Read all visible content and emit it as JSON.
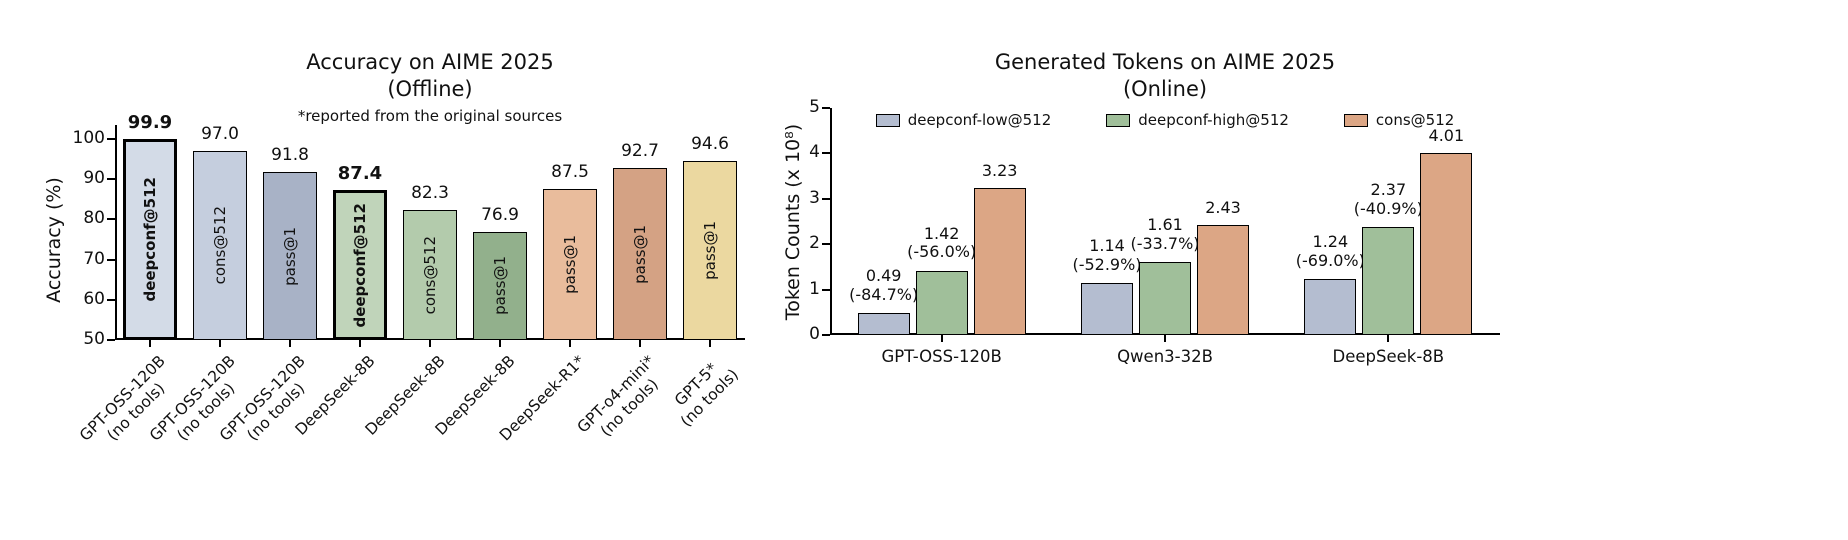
{
  "figure": {
    "background": "#ffffff"
  },
  "chart_data": [
    {
      "type": "bar",
      "title": "Accuracy on AIME 2025",
      "subtitle": "(Offline)",
      "note": "*reported from the original sources",
      "ylabel": "Accuracy (%)",
      "xlabel": "",
      "ylim": [
        50,
        100
      ],
      "yticks": [
        50,
        60,
        70,
        80,
        90,
        100
      ],
      "grid": false,
      "bars": [
        {
          "category": "GPT-OSS-120B\n(no tools)",
          "method": "deepconf@512",
          "value": 99.9,
          "label": "99.9",
          "color": "#d3dbe7",
          "highlight": true
        },
        {
          "category": "GPT-OSS-120B\n(no tools)",
          "method": "cons@512",
          "value": 97.0,
          "label": "97.0",
          "color": "#c5cede",
          "highlight": false
        },
        {
          "category": "GPT-OSS-120B\n(no tools)",
          "method": "pass@1",
          "value": 91.8,
          "label": "91.8",
          "color": "#a8b2c6",
          "highlight": false
        },
        {
          "category": "DeepSeek-8B",
          "method": "deepconf@512",
          "value": 87.4,
          "label": "87.4",
          "color": "#c0d4ba",
          "highlight": true
        },
        {
          "category": "DeepSeek-8B",
          "method": "cons@512",
          "value": 82.3,
          "label": "82.3",
          "color": "#b3cbac",
          "highlight": false
        },
        {
          "category": "DeepSeek-8B",
          "method": "pass@1",
          "value": 76.9,
          "label": "76.9",
          "color": "#92b08c",
          "highlight": false
        },
        {
          "category": "DeepSeek-R1*",
          "method": "pass@1",
          "value": 87.5,
          "label": "87.5",
          "color": "#e9bc9c",
          "highlight": false
        },
        {
          "category": "GPT-o4-mini*\n(no tools)",
          "method": "pass@1",
          "value": 92.7,
          "label": "92.7",
          "color": "#d4a284",
          "highlight": false
        },
        {
          "category": "GPT-5*\n(no tools)",
          "method": "pass@1",
          "value": 94.6,
          "label": "94.6",
          "color": "#ebd8a0",
          "highlight": false
        }
      ]
    },
    {
      "type": "bar",
      "title": "Generated Tokens on AIME 2025",
      "subtitle": "(Online)",
      "ylabel": "Token Counts (x 10⁸)",
      "xlabel": "",
      "ylim": [
        0,
        5
      ],
      "yticks": [
        0,
        1,
        2,
        3,
        4,
        5
      ],
      "grid": false,
      "legend_position": "top",
      "categories": [
        "GPT-OSS-120B",
        "Qwen3-32B",
        "DeepSeek-8B"
      ],
      "series": [
        {
          "name": "deepconf-low@512",
          "color": "#b4bdd0",
          "values": [
            0.49,
            1.14,
            1.24
          ],
          "labels": [
            "0.49\n(-84.7%)",
            "1.14\n(-52.9%)",
            "1.24\n(-69.0%)"
          ]
        },
        {
          "name": "deepconf-high@512",
          "color": "#a0bf9a",
          "values": [
            1.42,
            1.61,
            2.37
          ],
          "labels": [
            "1.42\n(-56.0%)",
            "1.61\n(-33.7%)",
            "2.37\n(-40.9%)"
          ]
        },
        {
          "name": "cons@512",
          "color": "#dca685",
          "values": [
            3.23,
            2.43,
            4.01
          ],
          "labels": [
            "3.23",
            "2.43",
            "4.01"
          ]
        }
      ]
    }
  ]
}
